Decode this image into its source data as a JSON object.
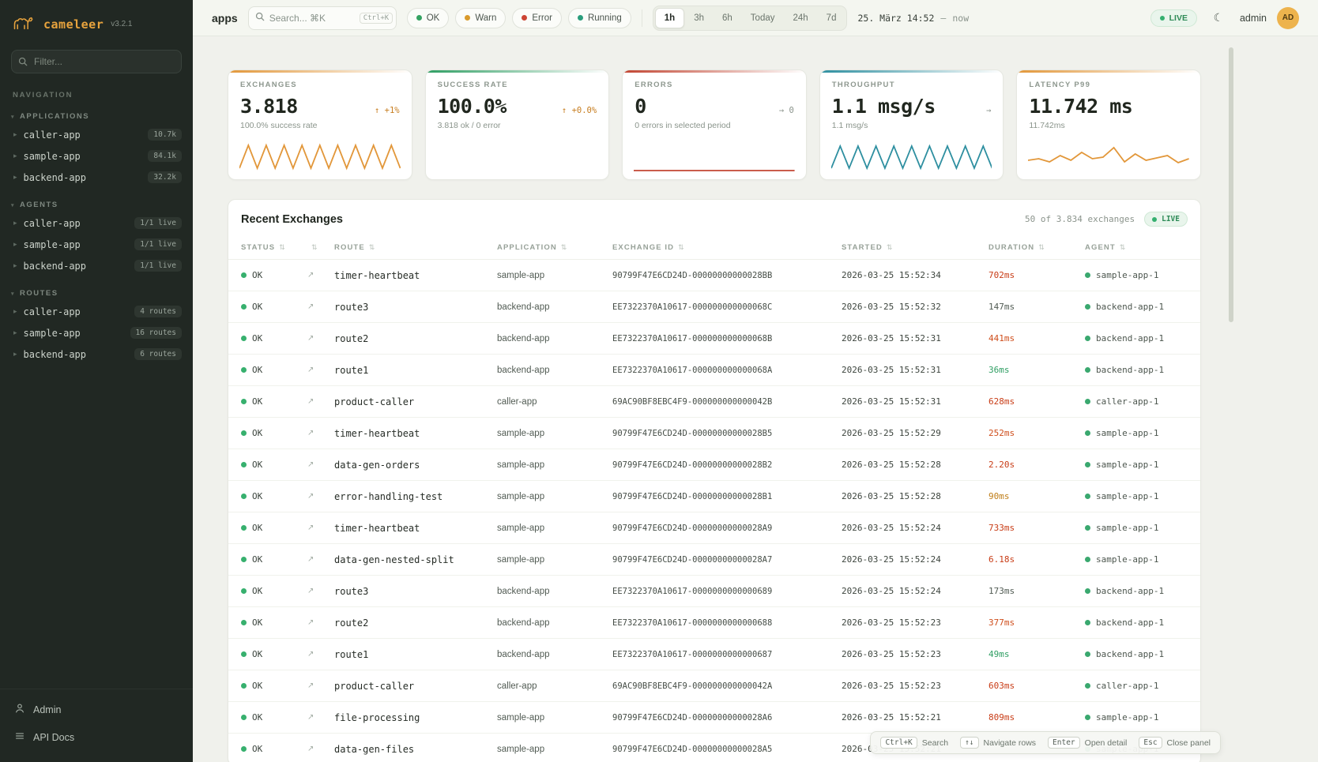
{
  "brand": {
    "name": "cameleer",
    "version": "v3.2.1"
  },
  "colors": {
    "accent_orange": "#e8a33d",
    "teal": "#2e8fa0",
    "green": "#2f9e63",
    "red": "#c24532",
    "live_green": "#2e8b57",
    "sidebar_bg": "#212823"
  },
  "sidebar": {
    "filter_placeholder": "Filter...",
    "nav_label": "NAVIGATION",
    "sections": [
      {
        "title": "APPLICATIONS",
        "items": [
          {
            "label": "caller-app",
            "badge": "10.7k"
          },
          {
            "label": "sample-app",
            "badge": "84.1k"
          },
          {
            "label": "backend-app",
            "badge": "32.2k"
          }
        ]
      },
      {
        "title": "AGENTS",
        "items": [
          {
            "label": "caller-app",
            "badge": "1/1 live"
          },
          {
            "label": "sample-app",
            "badge": "1/1 live"
          },
          {
            "label": "backend-app",
            "badge": "1/1 live"
          }
        ]
      },
      {
        "title": "ROUTES",
        "items": [
          {
            "label": "caller-app",
            "badge": "4 routes"
          },
          {
            "label": "sample-app",
            "badge": "16 routes"
          },
          {
            "label": "backend-app",
            "badge": "6 routes"
          }
        ]
      }
    ],
    "footer": [
      {
        "label": "Admin",
        "icon": "user-icon"
      },
      {
        "label": "API Docs",
        "icon": "list-icon"
      }
    ]
  },
  "topbar": {
    "context": "apps",
    "search_placeholder": "Search... ⌘K",
    "search_kbd": "Ctrl+K",
    "chips": [
      {
        "label": "OK",
        "color": "#34a262"
      },
      {
        "label": "Warn",
        "color": "#d99a2b"
      },
      {
        "label": "Error",
        "color": "#cc4433"
      },
      {
        "label": "Running",
        "color": "#2a9d7c"
      }
    ],
    "ranges": [
      "1h",
      "3h",
      "6h",
      "Today",
      "24h",
      "7d"
    ],
    "active_range": "1h",
    "date_label": "25. März 14:52",
    "date_sep": "—",
    "date_now": "now",
    "live_label": "LIVE",
    "user": "admin",
    "avatar": "AD"
  },
  "cards": [
    {
      "title": "EXCHANGES",
      "value": "3.818",
      "delta": "↑ +1%",
      "delta_color": "#c77d1f",
      "sub": "100.0% success rate",
      "accent": "#e2973a",
      "spark": "exchanges"
    },
    {
      "title": "SUCCESS RATE",
      "value": "100.0%",
      "delta": "↑ +0.0%",
      "delta_color": "#c77d1f",
      "sub": "3.818 ok / 0 error",
      "accent": "#2f9e63",
      "spark": "success"
    },
    {
      "title": "ERRORS",
      "value": "0",
      "delta": "→ 0",
      "delta_color": "#8b948c",
      "sub": "0 errors in selected period",
      "accent": "#c24532",
      "spark": "errors"
    },
    {
      "title": "THROUGHPUT",
      "value": "1.1 msg/s",
      "delta": "→",
      "delta_color": "#8b948c",
      "sub": "1.1 msg/s",
      "accent": "#2e8fa0",
      "spark": "throughput"
    },
    {
      "title": "LATENCY P99",
      "value": "11.742 ms",
      "delta": "",
      "delta_color": "#8b948c",
      "sub": "11.742ms",
      "accent": "#e2973a",
      "spark": "latency"
    }
  ],
  "sparklines": {
    "exchanges": {
      "color": "#e2973a",
      "points": [
        34,
        5,
        34,
        5,
        34,
        5,
        34,
        5,
        34,
        5,
        34,
        5,
        34,
        5,
        34,
        5,
        34,
        5,
        34
      ]
    },
    "success": {
      "color": "#2f9e63",
      "points": []
    },
    "errors": {
      "color": "#c24532",
      "points": [
        37,
        37
      ]
    },
    "throughput": {
      "color": "#2e8fa0",
      "points": [
        34,
        6,
        34,
        6,
        34,
        6,
        34,
        6,
        34,
        6,
        34,
        6,
        34,
        6,
        34,
        6,
        34,
        6,
        34
      ]
    },
    "latency": {
      "color": "#e2973a",
      "points": [
        24,
        22,
        26,
        18,
        24,
        14,
        22,
        20,
        8,
        26,
        16,
        24,
        21,
        18,
        27,
        22
      ]
    }
  },
  "table": {
    "title": "Recent Exchanges",
    "summary": "50 of 3.834 exchanges",
    "live_label": "LIVE",
    "columns": [
      "STATUS",
      "",
      "ROUTE",
      "APPLICATION",
      "EXCHANGE ID",
      "STARTED",
      "DURATION",
      "AGENT"
    ],
    "rows": [
      {
        "status": "OK",
        "route": "timer-heartbeat",
        "app": "sample-app",
        "exchange_id": "90799F47E6CD24D-00000000000028BB",
        "started": "2026-03-25 15:52:34",
        "duration": "702ms",
        "duration_color": "red",
        "agent": "sample-app-1"
      },
      {
        "status": "OK",
        "route": "route3",
        "app": "backend-app",
        "exchange_id": "EE7322370A10617-000000000000068C",
        "started": "2026-03-25 15:52:32",
        "duration": "147ms",
        "duration_color": "gray",
        "agent": "backend-app-1"
      },
      {
        "status": "OK",
        "route": "route2",
        "app": "backend-app",
        "exchange_id": "EE7322370A10617-000000000000068B",
        "started": "2026-03-25 15:52:31",
        "duration": "441ms",
        "duration_color": "orange",
        "agent": "backend-app-1"
      },
      {
        "status": "OK",
        "route": "route1",
        "app": "backend-app",
        "exchange_id": "EE7322370A10617-000000000000068A",
        "started": "2026-03-25 15:52:31",
        "duration": "36ms",
        "duration_color": "green",
        "agent": "backend-app-1"
      },
      {
        "status": "OK",
        "route": "product-caller",
        "app": "caller-app",
        "exchange_id": "69AC90BF8EBC4F9-000000000000042B",
        "started": "2026-03-25 15:52:31",
        "duration": "628ms",
        "duration_color": "red",
        "agent": "caller-app-1"
      },
      {
        "status": "OK",
        "route": "timer-heartbeat",
        "app": "sample-app",
        "exchange_id": "90799F47E6CD24D-00000000000028B5",
        "started": "2026-03-25 15:52:29",
        "duration": "252ms",
        "duration_color": "orange",
        "agent": "sample-app-1"
      },
      {
        "status": "OK",
        "route": "data-gen-orders",
        "app": "sample-app",
        "exchange_id": "90799F47E6CD24D-00000000000028B2",
        "started": "2026-03-25 15:52:28",
        "duration": "2.20s",
        "duration_color": "red",
        "agent": "sample-app-1"
      },
      {
        "status": "OK",
        "route": "error-handling-test",
        "app": "sample-app",
        "exchange_id": "90799F47E6CD24D-00000000000028B1",
        "started": "2026-03-25 15:52:28",
        "duration": "90ms",
        "duration_color": "amber",
        "agent": "sample-app-1"
      },
      {
        "status": "OK",
        "route": "timer-heartbeat",
        "app": "sample-app",
        "exchange_id": "90799F47E6CD24D-00000000000028A9",
        "started": "2026-03-25 15:52:24",
        "duration": "733ms",
        "duration_color": "red",
        "agent": "sample-app-1"
      },
      {
        "status": "OK",
        "route": "data-gen-nested-split",
        "app": "sample-app",
        "exchange_id": "90799F47E6CD24D-00000000000028A7",
        "started": "2026-03-25 15:52:24",
        "duration": "6.18s",
        "duration_color": "red",
        "agent": "sample-app-1"
      },
      {
        "status": "OK",
        "route": "route3",
        "app": "backend-app",
        "exchange_id": "EE7322370A10617-0000000000000689",
        "started": "2026-03-25 15:52:24",
        "duration": "173ms",
        "duration_color": "gray",
        "agent": "backend-app-1"
      },
      {
        "status": "OK",
        "route": "route2",
        "app": "backend-app",
        "exchange_id": "EE7322370A10617-0000000000000688",
        "started": "2026-03-25 15:52:23",
        "duration": "377ms",
        "duration_color": "orange",
        "agent": "backend-app-1"
      },
      {
        "status": "OK",
        "route": "route1",
        "app": "backend-app",
        "exchange_id": "EE7322370A10617-0000000000000687",
        "started": "2026-03-25 15:52:23",
        "duration": "49ms",
        "duration_color": "green",
        "agent": "backend-app-1"
      },
      {
        "status": "OK",
        "route": "product-caller",
        "app": "caller-app",
        "exchange_id": "69AC90BF8EBC4F9-000000000000042A",
        "started": "2026-03-25 15:52:23",
        "duration": "603ms",
        "duration_color": "red",
        "agent": "caller-app-1"
      },
      {
        "status": "OK",
        "route": "file-processing",
        "app": "sample-app",
        "exchange_id": "90799F47E6CD24D-00000000000028A6",
        "started": "2026-03-25 15:52:21",
        "duration": "809ms",
        "duration_color": "red",
        "agent": "sample-app-1"
      },
      {
        "status": "OK",
        "route": "data-gen-files",
        "app": "sample-app",
        "exchange_id": "90799F47E6CD24D-00000000000028A5",
        "started": "2026-03-25 15:52:21",
        "duration": "",
        "duration_color": "gray",
        "agent": "sample-app-1"
      }
    ]
  },
  "hints": [
    {
      "kbd": "Ctrl+K",
      "label": "Search"
    },
    {
      "kbd": "↑↓",
      "label": "Navigate rows"
    },
    {
      "kbd": "Enter",
      "label": "Open detail"
    },
    {
      "kbd": "Esc",
      "label": "Close panel"
    }
  ]
}
